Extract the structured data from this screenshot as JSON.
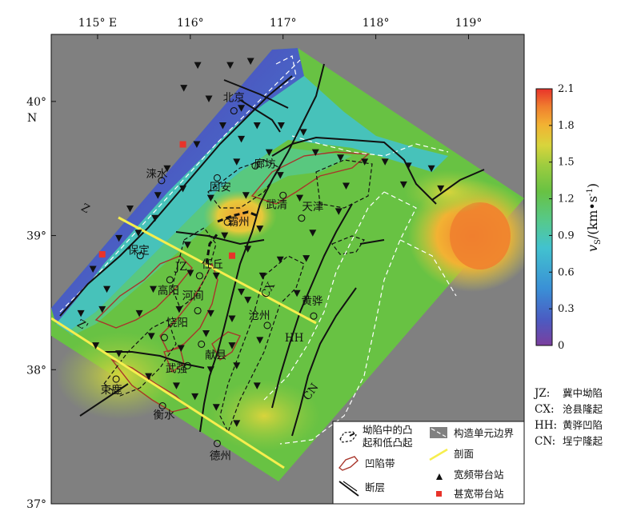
{
  "axes": {
    "lon_ticks": [
      {
        "label": "115° E",
        "lon": 115
      },
      {
        "label": "116°",
        "lon": 116
      },
      {
        "label": "117°",
        "lon": 117
      },
      {
        "label": "118°",
        "lon": 118
      },
      {
        "label": "119°",
        "lon": 119
      }
    ],
    "lat_ticks": [
      {
        "label": "40°",
        "lat": 40
      },
      {
        "label": "39°",
        "lat": 39
      },
      {
        "label": "38°",
        "lat": 38
      },
      {
        "label": "37°",
        "lat": 37
      }
    ],
    "lat_unit": "N",
    "lon_range": [
      114.5,
      119.6
    ],
    "lat_range": [
      37.0,
      40.5
    ]
  },
  "colorbar": {
    "ticks": [
      "2.1",
      "1.8",
      "1.5",
      "1.2",
      "0.9",
      "0.6",
      "0.3",
      "0"
    ],
    "range": [
      0,
      2.1
    ],
    "unit_label": "v",
    "unit_sub": "S",
    "unit_rest": "/(km•s",
    "unit_sup": "-1",
    "unit_close": ")",
    "colors": [
      "#7b3f9e",
      "#4b5bc2",
      "#3a8fd6",
      "#42c2cf",
      "#55c98f",
      "#68c243",
      "#9ccc3f",
      "#d8d43c",
      "#f2b233",
      "#f07f2e",
      "#e8332a"
    ]
  },
  "cities": [
    {
      "name": "北京",
      "lon": 116.47,
      "lat": 39.93
    },
    {
      "name": "廊坊",
      "lon": 116.7,
      "lat": 39.52
    },
    {
      "name": "涞水",
      "lon": 115.69,
      "lat": 39.41
    },
    {
      "name": "固安",
      "lon": 116.29,
      "lat": 39.43
    },
    {
      "name": "武清",
      "lon": 117.0,
      "lat": 39.3
    },
    {
      "name": "天津",
      "lon": 117.2,
      "lat": 39.13
    },
    {
      "name": "霸州",
      "lon": 116.4,
      "lat": 39.1
    },
    {
      "name": "保定",
      "lon": 115.46,
      "lat": 38.85
    },
    {
      "name": "任丘",
      "lon": 116.1,
      "lat": 38.7
    },
    {
      "name": "高阳",
      "lon": 115.78,
      "lat": 38.67
    },
    {
      "name": "河间",
      "lon": 116.08,
      "lat": 38.44
    },
    {
      "name": "沧州",
      "lon": 116.83,
      "lat": 38.33
    },
    {
      "name": "黄骅",
      "lon": 117.33,
      "lat": 38.4
    },
    {
      "name": "饶阳",
      "lon": 115.72,
      "lat": 38.24
    },
    {
      "name": "献县",
      "lon": 116.12,
      "lat": 38.19
    },
    {
      "name": "武强",
      "lon": 115.97,
      "lat": 38.03
    },
    {
      "name": "束鹿",
      "lon": 115.2,
      "lat": 37.93
    },
    {
      "name": "衡水",
      "lon": 115.7,
      "lat": 37.73
    },
    {
      "name": "德州",
      "lon": 116.29,
      "lat": 37.45
    }
  ],
  "regions": [
    {
      "abbr": "JZ",
      "lon": 115.9,
      "lat": 38.74
    },
    {
      "abbr": "CX",
      "lon": 116.87,
      "lat": 38.58
    },
    {
      "abbr": "HH",
      "lon": 117.12,
      "lat": 38.21
    },
    {
      "abbr": "CN",
      "lon": 117.33,
      "lat": 37.82
    }
  ],
  "profile_labels": [
    {
      "text": "Z",
      "lon": 114.85,
      "lat": 39.18
    },
    {
      "text": "Z'",
      "lon": 114.82,
      "lat": 38.31
    }
  ],
  "wide_band_stations": [
    [
      116.08,
      40.27
    ],
    [
      116.43,
      40.27
    ],
    [
      116.65,
      40.3
    ],
    [
      115.93,
      40.1
    ],
    [
      116.2,
      40.02
    ],
    [
      116.55,
      39.95
    ],
    [
      116.35,
      39.82
    ],
    [
      116.72,
      39.82
    ],
    [
      116.98,
      39.82
    ],
    [
      117.22,
      39.77
    ],
    [
      116.55,
      39.72
    ],
    [
      116.85,
      39.62
    ],
    [
      117.35,
      39.62
    ],
    [
      117.62,
      39.58
    ],
    [
      117.88,
      39.55
    ],
    [
      118.1,
      39.55
    ],
    [
      118.35,
      39.52
    ],
    [
      118.6,
      39.5
    ],
    [
      116.07,
      39.68
    ],
    [
      116.5,
      39.55
    ],
    [
      115.75,
      39.5
    ],
    [
      116.97,
      39.45
    ],
    [
      117.68,
      39.37
    ],
    [
      118.3,
      39.38
    ],
    [
      118.7,
      39.35
    ],
    [
      115.65,
      39.3
    ],
    [
      115.92,
      39.35
    ],
    [
      116.22,
      39.28
    ],
    [
      116.6,
      39.3
    ],
    [
      117.18,
      39.28
    ],
    [
      115.35,
      39.2
    ],
    [
      115.62,
      39.13
    ],
    [
      116.37,
      39.0
    ],
    [
      116.75,
      39.05
    ],
    [
      117.32,
      39.02
    ],
    [
      117.6,
      39.18
    ],
    [
      115.23,
      38.98
    ],
    [
      115.44,
      39.02
    ],
    [
      115.97,
      38.93
    ],
    [
      116.62,
      38.9
    ],
    [
      116.97,
      38.82
    ],
    [
      117.25,
      38.83
    ],
    [
      114.95,
      38.75
    ],
    [
      115.1,
      38.6
    ],
    [
      115.6,
      38.6
    ],
    [
      116.0,
      38.72
    ],
    [
      116.28,
      38.7
    ],
    [
      116.55,
      38.58
    ],
    [
      116.78,
      38.7
    ],
    [
      117.15,
      38.57
    ],
    [
      114.82,
      38.42
    ],
    [
      115.05,
      38.45
    ],
    [
      115.45,
      38.42
    ],
    [
      115.88,
      38.45
    ],
    [
      116.22,
      38.42
    ],
    [
      116.45,
      38.38
    ],
    [
      116.62,
      38.52
    ],
    [
      114.98,
      38.18
    ],
    [
      115.23,
      38.12
    ],
    [
      115.58,
      38.25
    ],
    [
      115.9,
      38.16
    ],
    [
      116.17,
      38.27
    ],
    [
      116.45,
      38.18
    ],
    [
      116.75,
      38.22
    ],
    [
      116.22,
      38.0
    ],
    [
      116.5,
      38.03
    ],
    [
      116.28,
      37.72
    ],
    [
      116.72,
      37.88
    ],
    [
      115.55,
      37.95
    ],
    [
      115.85,
      37.88
    ],
    [
      116.05,
      37.8
    ],
    [
      116.5,
      37.6
    ]
  ],
  "broadband_stations": [
    [
      115.92,
      39.68
    ],
    [
      115.05,
      38.86
    ],
    [
      116.45,
      38.85
    ]
  ],
  "legend": {
    "uplift": "坳陷中的凸起和低凸起",
    "uplift_line1": "坳陷中的凸",
    "uplift_line2": "起和低凸起",
    "sag": "凹陷带",
    "fault": "断层",
    "boundary": "构造单元边界",
    "profile": "剖面",
    "wide_station": "宽频带台站",
    "broad_station": "甚宽带台站"
  },
  "abbreviations": [
    {
      "code": "JZ:",
      "name": "冀中坳陷"
    },
    {
      "code": "CX:",
      "name": "沧县隆起"
    },
    {
      "code": "HH:",
      "name": "黄骅凹陷"
    },
    {
      "code": "CN:",
      "name": "埕宁隆起"
    }
  ]
}
